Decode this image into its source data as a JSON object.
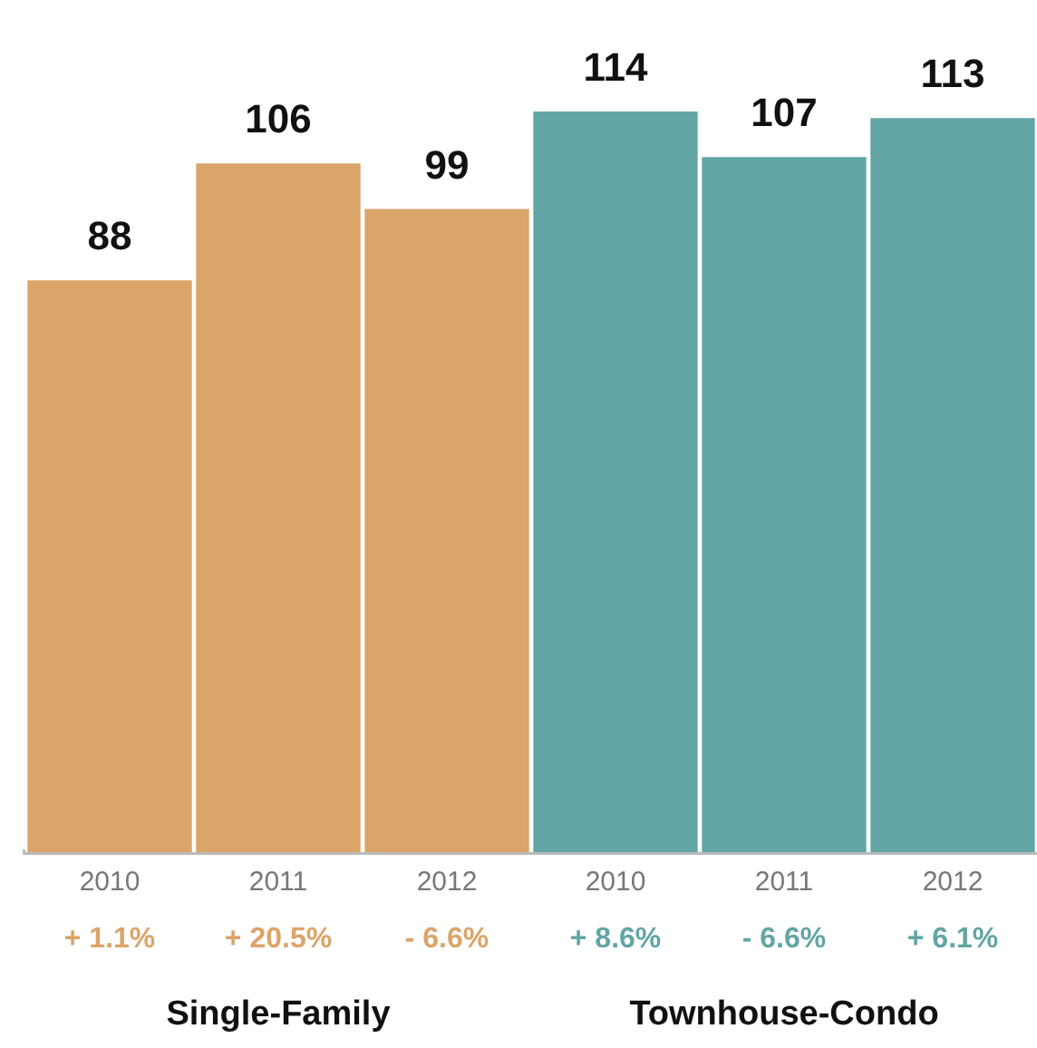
{
  "chart_data": {
    "type": "bar",
    "categories": [
      "2010",
      "2011",
      "2012",
      "2010",
      "2011",
      "2012"
    ],
    "series": [
      {
        "color": "#dba468",
        "values": [
          88,
          106,
          99,
          null,
          null,
          null
        ]
      },
      {
        "color": "#63a5a5",
        "values": [
          null,
          null,
          null,
          114,
          107,
          113
        ]
      }
    ],
    "stacked": true,
    "data_labels": true,
    "grid": false,
    "legend": false,
    "annotations": [
      "+ 1.1%",
      "+ 20.5%",
      "- 6.6%",
      "+ 8.6%",
      "- 6.6%",
      "+ 6.1%",
      "Single-Family",
      "Townhouse-Condo"
    ]
  }
}
